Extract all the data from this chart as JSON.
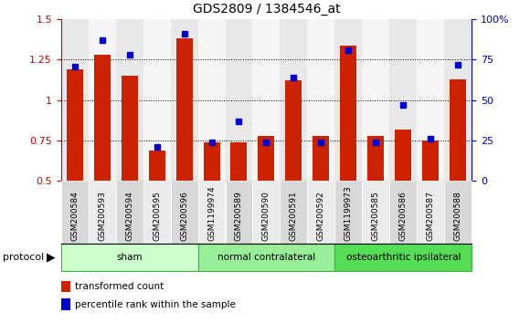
{
  "title": "GDS2809 / 1384546_at",
  "categories": [
    "GSM200584",
    "GSM200593",
    "GSM200594",
    "GSM200595",
    "GSM200596",
    "GSM1199974",
    "GSM200589",
    "GSM200590",
    "GSM200591",
    "GSM200592",
    "GSM1199973",
    "GSM200585",
    "GSM200586",
    "GSM200587",
    "GSM200588"
  ],
  "red_values": [
    1.19,
    1.28,
    1.15,
    0.69,
    1.38,
    0.74,
    0.74,
    0.78,
    1.12,
    0.78,
    1.34,
    0.78,
    0.82,
    0.75,
    1.13
  ],
  "blue_right_scale": [
    71,
    87,
    78,
    21,
    91,
    24,
    37,
    24,
    64,
    24,
    81,
    24,
    47,
    26,
    72
  ],
  "ylim_left": [
    0.5,
    1.5
  ],
  "ylim_right": [
    0,
    100
  ],
  "yticks_left": [
    0.5,
    0.75,
    1.0,
    1.25,
    1.5
  ],
  "ytick_labels_left": [
    "0.5",
    "0.75",
    "1",
    "1.25",
    "1.5"
  ],
  "yticks_right": [
    0,
    25,
    50,
    75,
    100
  ],
  "ytick_labels_right": [
    "0",
    "25",
    "50",
    "75",
    "100%"
  ],
  "groups": [
    {
      "label": "sham",
      "start": 0,
      "end": 5,
      "color": "#ccffcc"
    },
    {
      "label": "normal contralateral",
      "start": 5,
      "end": 10,
      "color": "#99ee99"
    },
    {
      "label": "osteoarthritic ipsilateral",
      "start": 10,
      "end": 15,
      "color": "#55dd55"
    }
  ],
  "protocol_label": "protocol",
  "legend_red": "transformed count",
  "legend_blue": "percentile rank within the sample",
  "bar_color": "#cc2200",
  "dot_color": "#0000cc",
  "title_color": "#000000",
  "left_axis_color": "#cc0000",
  "right_axis_color": "#0000cc",
  "bar_width": 0.6,
  "bar_bottom": 0.5
}
